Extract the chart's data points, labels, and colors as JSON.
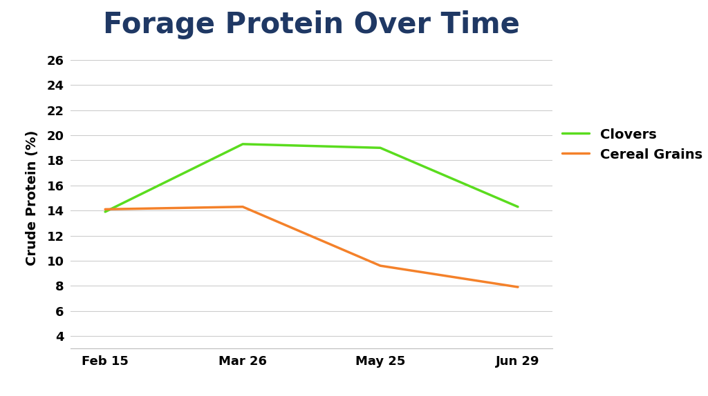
{
  "title": "Forage Protein Over Time",
  "title_fontsize": 30,
  "title_color": "#1f3864",
  "title_fontweight": "bold",
  "ylabel": "Crude Protein (%)",
  "ylabel_fontsize": 14,
  "ylabel_color": "#000000",
  "ylabel_fontweight": "bold",
  "x_labels": [
    "Feb 15",
    "Mar 26",
    "May 25",
    "Jun 29"
  ],
  "x_positions": [
    0,
    1,
    2,
    3
  ],
  "ylim": [
    3,
    27
  ],
  "yticks": [
    4,
    6,
    8,
    10,
    12,
    14,
    16,
    18,
    20,
    22,
    24,
    26
  ],
  "series": [
    {
      "name": "Clovers",
      "color": "#5adc1e",
      "linewidth": 2.5,
      "values": [
        13.9,
        19.3,
        19.0,
        14.3
      ]
    },
    {
      "name": "Cereal Grains",
      "color": "#f4812a",
      "linewidth": 2.5,
      "values": [
        14.1,
        14.3,
        9.6,
        7.9
      ]
    }
  ],
  "legend_fontsize": 14,
  "legend_text_color": "#000000",
  "grid_color": "#cccccc",
  "background_color": "#ffffff",
  "tick_label_fontsize": 13,
  "tick_label_color": "#000000",
  "tick_label_fontweight": "bold",
  "xlim_left": -0.25,
  "xlim_right": 3.25
}
